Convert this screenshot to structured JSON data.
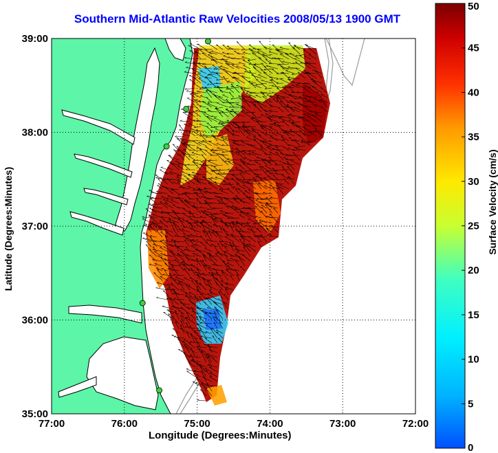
{
  "title": "Southern Mid-Atlantic Raw Velocities 2008/05/13 1900 GMT",
  "colors": {
    "title": "#0000ff",
    "land": "#5df5a8",
    "sea": "#ffffff",
    "coastline": "#000000",
    "isobath": "#9a9a9a",
    "station": "#3ecf3e"
  },
  "map": {
    "xlabel": "Longitude (Degrees:Minutes)",
    "ylabel": "Latitude (Degrees:Minutes)",
    "xticks": [
      "77:00",
      "76:00",
      "75:00",
      "74:00",
      "73:00",
      "72:00"
    ],
    "yticks": [
      "39:00",
      "38:00",
      "37:00",
      "36:00",
      "35:00"
    ],
    "lon_range": [
      -77,
      -72
    ],
    "lat_range": [
      35,
      39
    ],
    "grid": "dotted"
  },
  "colorbar": {
    "label": "Surface Velocity (cm/s)",
    "min": 0,
    "max": 50,
    "ticks": [
      "50",
      "45",
      "40",
      "35",
      "30",
      "25",
      "20",
      "15",
      "10",
      "5",
      "0"
    ],
    "colormap": "jet"
  },
  "stations": [
    {
      "lon": -74.85,
      "lat": 38.97
    },
    {
      "lon": -75.15,
      "lat": 38.25
    },
    {
      "lon": -75.42,
      "lat": 37.85
    },
    {
      "lon": -75.75,
      "lat": 36.18
    },
    {
      "lon": -75.52,
      "lat": 35.25
    }
  ]
}
